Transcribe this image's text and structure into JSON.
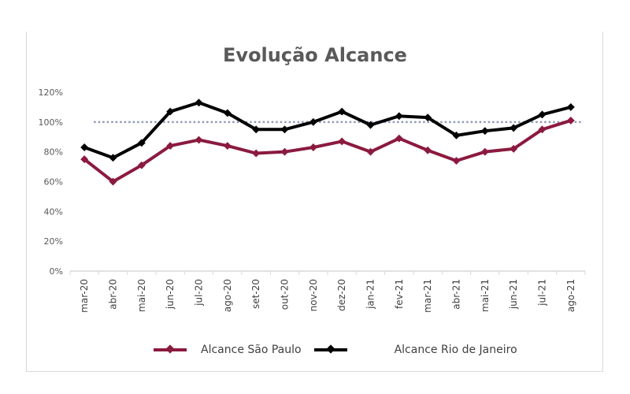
{
  "chart_data": {
    "type": "line",
    "title": "Evolução Alcance",
    "xlabel": "",
    "ylabel": "",
    "categories": [
      "mar-20",
      "abr-20",
      "mai-20",
      "jun-20",
      "jul-20",
      "ago-20",
      "set-20",
      "out-20",
      "nov-20",
      "dez-20",
      "jan-21",
      "fev-21",
      "mar-21",
      "abr-21",
      "mai-21",
      "jun-21",
      "jul-21",
      "ago-21"
    ],
    "series": [
      {
        "name": "Alcance São Paulo",
        "color": "#8b1a3e",
        "values": [
          75,
          60,
          71,
          84,
          88,
          84,
          79,
          80,
          83,
          87,
          80,
          89,
          81,
          74,
          80,
          82,
          95,
          101
        ]
      },
      {
        "name": "Alcance Rio de Janeiro",
        "color": "#000000",
        "values": [
          83,
          76,
          86,
          107,
          113,
          106,
          95,
          95,
          100,
          107,
          98,
          104,
          103,
          91,
          94,
          96,
          105,
          110
        ]
      }
    ],
    "reference_line": {
      "value": 100,
      "style": "dotted",
      "color": "#8e9bb5"
    },
    "ylim": [
      0,
      120
    ],
    "yticks": [
      "0%",
      "20%",
      "40%",
      "60%",
      "80%",
      "100%",
      "120%"
    ],
    "grid": false,
    "legend_position": "bottom"
  }
}
